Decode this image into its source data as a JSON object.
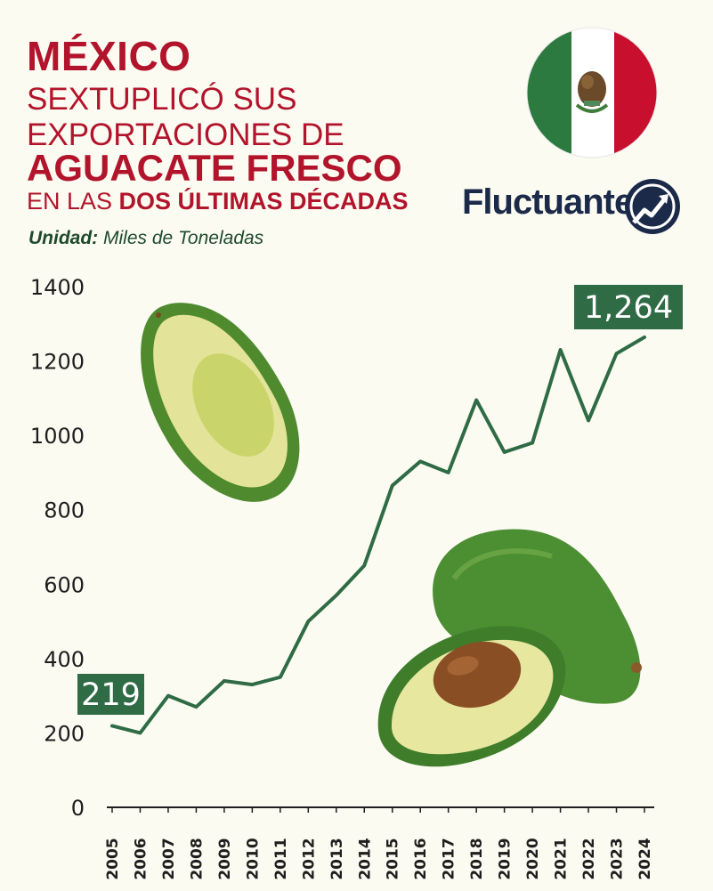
{
  "header": {
    "line1": "MÉXICO",
    "line2": "SEXTUPLICÓ SUS",
    "line3": "EXPORTACIONES DE",
    "line4": "AGUACATE FRESCO",
    "line5_prefix": "EN LAS ",
    "line5_bold": "DOS ÚLTIMAS DÉCADAS",
    "unit_label": "Unidad:",
    "unit_value": "Miles de Toneladas"
  },
  "brand": {
    "name": "Fluctuante",
    "icon": "chart-up-arrow-icon"
  },
  "flag": {
    "icon": "mexico-flag-icon",
    "green": "#2c7a3f",
    "white": "#ffffff",
    "red": "#c8102e"
  },
  "colors": {
    "line": "#2f6b45",
    "callout_bg": "#2f6b45",
    "title": "#b2142b",
    "axis": "#1e1e1e"
  },
  "chart_data": {
    "type": "line",
    "title": "MÉXICO SEXTUPLICÓ SUS EXPORTACIONES DE AGUACATE FRESCO EN LAS DOS ÚLTIMAS DÉCADAS",
    "ylabel": "Miles de Toneladas",
    "x": [
      "2005",
      "2006",
      "2007",
      "2008",
      "2009",
      "2010",
      "2011",
      "2012",
      "2013",
      "2014",
      "2015",
      "2016",
      "2017",
      "2018",
      "2019",
      "2020",
      "2021",
      "2022",
      "2023",
      "2024"
    ],
    "values": [
      219,
      200,
      300,
      270,
      340,
      330,
      350,
      500,
      570,
      650,
      865,
      930,
      900,
      1095,
      955,
      980,
      1230,
      1040,
      1220,
      1264
    ],
    "yticks": [
      0,
      200,
      400,
      600,
      800,
      1000,
      1200,
      1400
    ],
    "ylim": [
      0,
      1400
    ],
    "grid": false,
    "annotations": [
      {
        "label": "219",
        "index": 0
      },
      {
        "label": "1,264",
        "index": 19
      }
    ]
  }
}
